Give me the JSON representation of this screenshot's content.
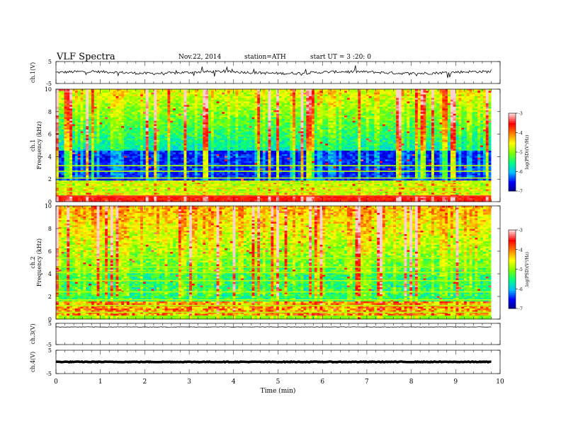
{
  "header": {
    "title": "VLF  Spectra",
    "date": "Nov.22, 2014",
    "station": "station=ATH",
    "start_ut": "start  UT =  3 :20: 0"
  },
  "chart_data": [
    {
      "type": "line",
      "ylabel": "ch.1(V)",
      "ylim": [
        -5,
        5
      ],
      "yticks": [
        "5",
        "-5"
      ],
      "note": "noisy waveform centered near 0 V"
    },
    {
      "type": "heatmap",
      "ylabel": "Frequency (kHz)",
      "channel_label": "ch.1",
      "ylim": [
        0,
        10
      ],
      "yticks": [
        "0",
        "2",
        "4",
        "6",
        "8",
        "10"
      ],
      "colorbar": {
        "label": "log(PSD)(V²/Hz)",
        "range": [
          -7,
          -3
        ],
        "ticks": [
          "-3",
          "-4",
          "-5",
          "-6",
          "-7"
        ]
      }
    },
    {
      "type": "heatmap",
      "ylabel": "Frequency (kHz)",
      "channel_label": "ch.2",
      "ylim": [
        0,
        10
      ],
      "yticks": [
        "0",
        "2",
        "4",
        "6",
        "8",
        "10"
      ],
      "colorbar": {
        "label": "log(PSD)(V²/Hz)",
        "range": [
          -7,
          -3
        ],
        "ticks": [
          "-3",
          "-4",
          "-5",
          "-6",
          "-7"
        ]
      }
    },
    {
      "type": "line",
      "ylabel": "ch.3(V)",
      "ylim": [
        -5,
        5
      ],
      "yticks": [
        "5",
        "-5"
      ],
      "note": "near-constant trace slightly below the top"
    },
    {
      "type": "line",
      "ylabel": "ch.4(V)",
      "ylim": [
        -5,
        5
      ],
      "yticks": [
        "5",
        "-5"
      ],
      "note": "thick flat trace near 0 V"
    }
  ],
  "xaxis": {
    "label": "Time  (min)",
    "ticks": [
      "0",
      "1",
      "2",
      "3",
      "4",
      "5",
      "6",
      "7",
      "8",
      "9",
      "10"
    ],
    "range": [
      0,
      10
    ],
    "data_end": 9.8
  },
  "colors": {
    "scale": [
      "#000080",
      "#0000ff",
      "#00bfff",
      "#00ff80",
      "#80ff00",
      "#ffff00",
      "#ff8000",
      "#ff0000",
      "#ffd0d0"
    ]
  }
}
